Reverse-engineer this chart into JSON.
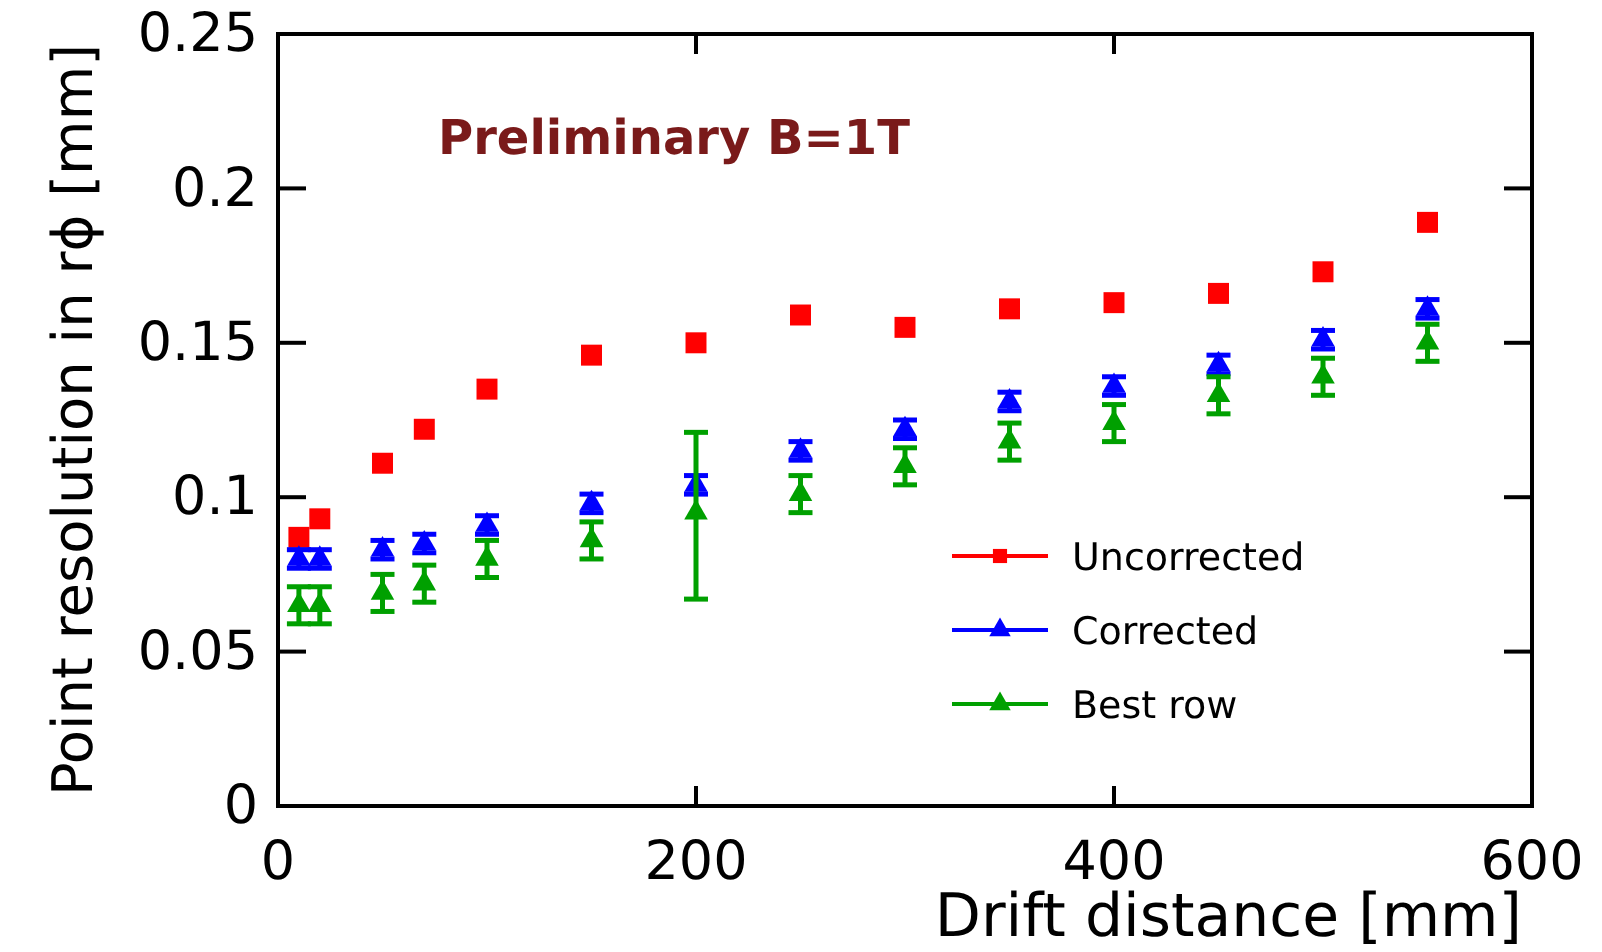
{
  "chart_data": {
    "type": "scatter",
    "xlabel": "Drift distance [mm]",
    "ylabel": "Point resolution in rϕ [mm]",
    "annotations": [
      "Preliminary B=1T"
    ],
    "x": [
      10,
      20,
      50,
      70,
      100,
      150,
      200,
      250,
      300,
      350,
      400,
      450,
      500,
      550
    ],
    "xlim": [
      0,
      600
    ],
    "xticks": [
      0,
      200,
      400,
      600
    ],
    "ylim": [
      0,
      0.25
    ],
    "yticks": [
      0,
      {
        "value": 0.05,
        "label": "0.05"
      },
      {
        "value": 0.1,
        "label": "0.1"
      },
      {
        "value": 0.15,
        "label": "0.15"
      },
      {
        "value": 0.2,
        "label": "0.2"
      },
      {
        "value": 0.25,
        "label": "0.25"
      }
    ],
    "legend": "bottom right",
    "grid": false,
    "series": [
      {
        "name": "Uncorrected",
        "color": "#ff0000",
        "marker": "square",
        "values": [
          0.087,
          0.093,
          0.111,
          0.122,
          0.135,
          0.146,
          0.15,
          0.159,
          0.155,
          0.161,
          0.163,
          0.166,
          0.173,
          0.189
        ]
      },
      {
        "name": "Corrected",
        "color": "#0000ff",
        "marker": "triangle",
        "values": [
          0.08,
          0.08,
          0.083,
          0.085,
          0.091,
          0.098,
          0.104,
          0.115,
          0.122,
          0.131,
          0.136,
          0.143,
          0.151,
          0.161
        ],
        "errors": [
          0.003,
          0.003,
          0.003,
          0.003,
          0.003,
          0.003,
          0.003,
          0.003,
          0.003,
          0.003,
          0.003,
          0.003,
          0.003,
          0.003
        ]
      },
      {
        "name": "Best row",
        "color": "#00a000",
        "marker": "triangle",
        "values": [
          0.065,
          0.065,
          0.069,
          0.072,
          0.08,
          0.086,
          0.095,
          0.101,
          0.11,
          0.118,
          0.124,
          0.133,
          0.139,
          0.15
        ],
        "errors": [
          0.006,
          0.006,
          0.006,
          0.006,
          0.006,
          0.006,
          [
            0.067,
            0.121
          ],
          0.006,
          0.006,
          0.006,
          0.006,
          0.006,
          0.006,
          0.006
        ]
      }
    ]
  }
}
